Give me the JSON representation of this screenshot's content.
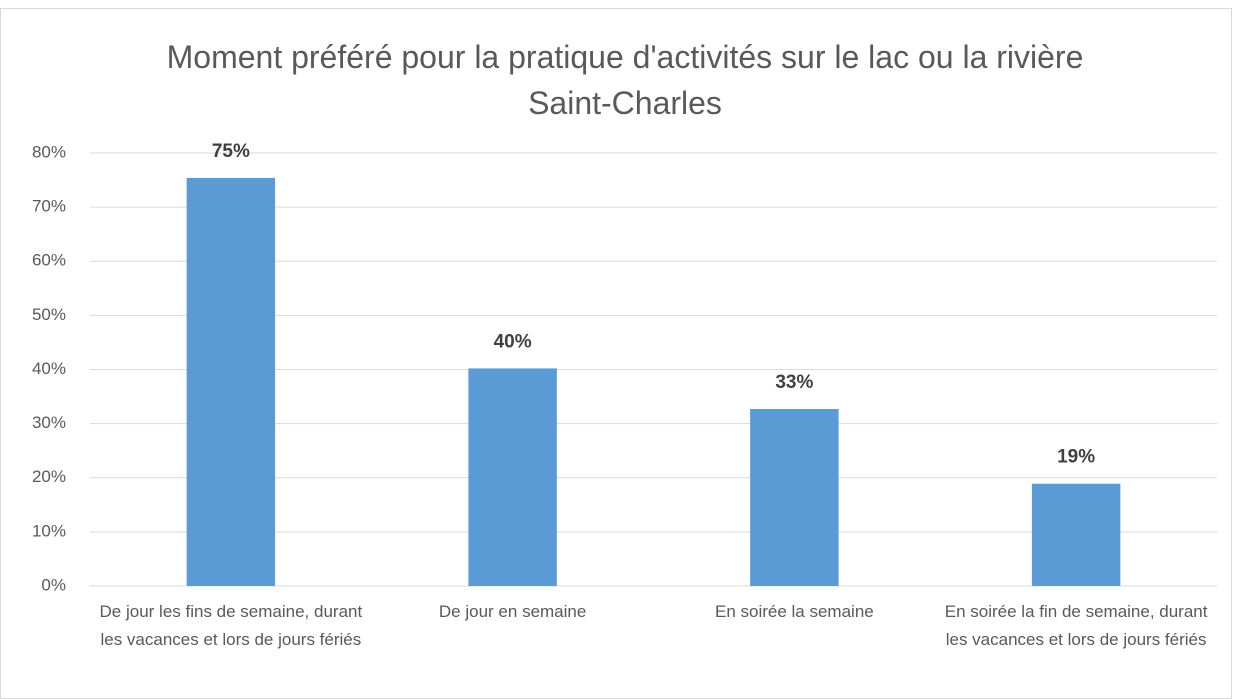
{
  "chart_data": {
    "type": "bar",
    "title": "Moment préféré pour la pratique d'activités sur le lac ou la rivière Saint-Charles",
    "categories": [
      "De jour les fins de semaine, durant les vacances et lors de jours fériés",
      "De jour en semaine",
      "En soirée la semaine",
      "En soirée la fin de semaine, durant les vacances et lors de jours fériés"
    ],
    "values": [
      75.4,
      40.2,
      32.7,
      18.9
    ],
    "value_labels": [
      "75%",
      "40%",
      "33%",
      "19%"
    ],
    "color": "#5b9bd5",
    "ylim": [
      0,
      80
    ],
    "yticks": [
      {
        "value": 0,
        "label": "0%"
      },
      {
        "value": 10,
        "label": "10%"
      },
      {
        "value": 20,
        "label": "20%"
      },
      {
        "value": 30,
        "label": "30%"
      },
      {
        "value": 40,
        "label": "40%"
      },
      {
        "value": 50,
        "label": "50%"
      },
      {
        "value": 60,
        "label": "60%"
      },
      {
        "value": 70,
        "label": "70%"
      },
      {
        "value": 80,
        "label": "80%"
      }
    ],
    "grid": true
  }
}
